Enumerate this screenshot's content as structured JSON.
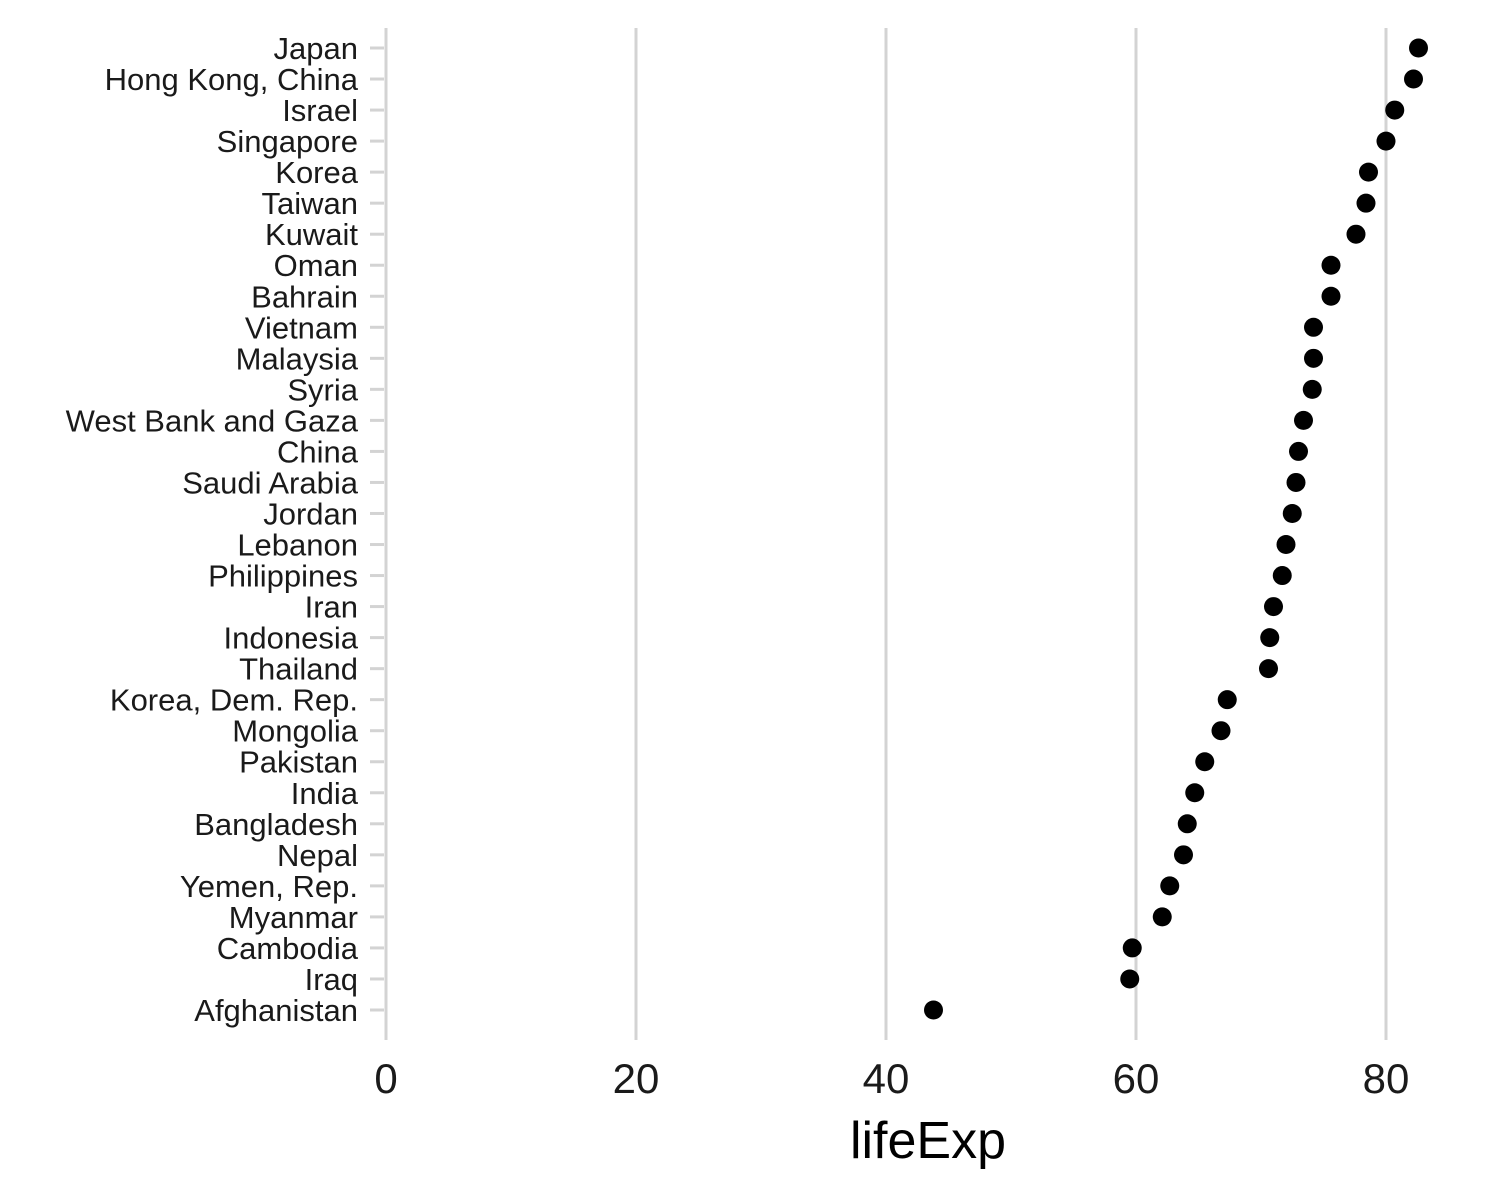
{
  "chart_data": {
    "type": "scatter",
    "title": "",
    "xlabel": "lifeExp",
    "ylabel": "",
    "xlim": [
      0,
      85
    ],
    "x_ticks": [
      0,
      20,
      40,
      60,
      80
    ],
    "x_tick_labels": [
      "0",
      "20",
      "40",
      "60",
      "80"
    ],
    "grid": {
      "vertical_major": true,
      "horizontal": false
    },
    "legend": "none",
    "colors": {
      "point": "#000000",
      "grid": "#d3d3d3",
      "tick": "#d3d3d3",
      "text": "#1a1a1a"
    },
    "categories": [
      "Japan",
      "Hong Kong, China",
      "Israel",
      "Singapore",
      "Korea",
      "Taiwan",
      "Kuwait",
      "Oman",
      "Bahrain",
      "Vietnam",
      "Malaysia",
      "Syria",
      "West Bank and Gaza",
      "China",
      "Saudi Arabia",
      "Jordan",
      "Lebanon",
      "Philippines",
      "Iran",
      "Indonesia",
      "Thailand",
      "Korea, Dem. Rep.",
      "Mongolia",
      "Pakistan",
      "India",
      "Bangladesh",
      "Nepal",
      "Yemen, Rep.",
      "Myanmar",
      "Cambodia",
      "Iraq",
      "Afghanistan"
    ],
    "values": [
      82.6,
      82.2,
      80.7,
      80.0,
      78.6,
      78.4,
      77.6,
      75.6,
      75.6,
      74.2,
      74.2,
      74.1,
      73.4,
      73.0,
      72.8,
      72.5,
      72.0,
      71.7,
      71.0,
      70.7,
      70.6,
      67.3,
      66.8,
      65.5,
      64.7,
      64.1,
      63.8,
      62.7,
      62.1,
      59.7,
      59.5,
      43.8
    ]
  }
}
